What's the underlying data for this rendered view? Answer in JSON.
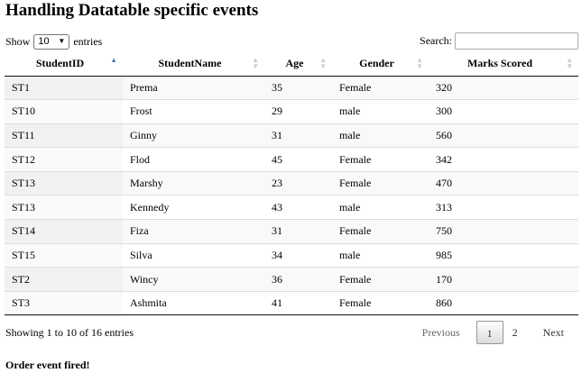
{
  "page": {
    "title": "Handling Datatable specific events"
  },
  "length": {
    "prefix": "Show",
    "value": "10",
    "suffix": "entries"
  },
  "search": {
    "label": "Search:",
    "value": ""
  },
  "table": {
    "columns": [
      "StudentID",
      "StudentName",
      "Age",
      "Gender",
      "Marks Scored"
    ],
    "rows": [
      [
        "ST1",
        "Prema",
        "35",
        "Female",
        "320"
      ],
      [
        "ST10",
        "Frost",
        "29",
        "male",
        "300"
      ],
      [
        "ST11",
        "Ginny",
        "31",
        "male",
        "560"
      ],
      [
        "ST12",
        "Flod",
        "45",
        "Female",
        "342"
      ],
      [
        "ST13",
        "Marshy",
        "23",
        "Female",
        "470"
      ],
      [
        "ST13",
        "Kennedy",
        "43",
        "male",
        "313"
      ],
      [
        "ST14",
        "Fiza",
        "31",
        "Female",
        "750"
      ],
      [
        "ST15",
        "Silva",
        "34",
        "male",
        "985"
      ],
      [
        "ST2",
        "Wincy",
        "36",
        "Female",
        "170"
      ],
      [
        "ST3",
        "Ashmita",
        "41",
        "Female",
        "860"
      ]
    ]
  },
  "info": "Showing 1 to 10 of 16 entries",
  "pagination": {
    "previous": "Previous",
    "pages": [
      "1",
      "2"
    ],
    "current": "1",
    "next": "Next"
  },
  "event_message": "Order event fired!"
}
